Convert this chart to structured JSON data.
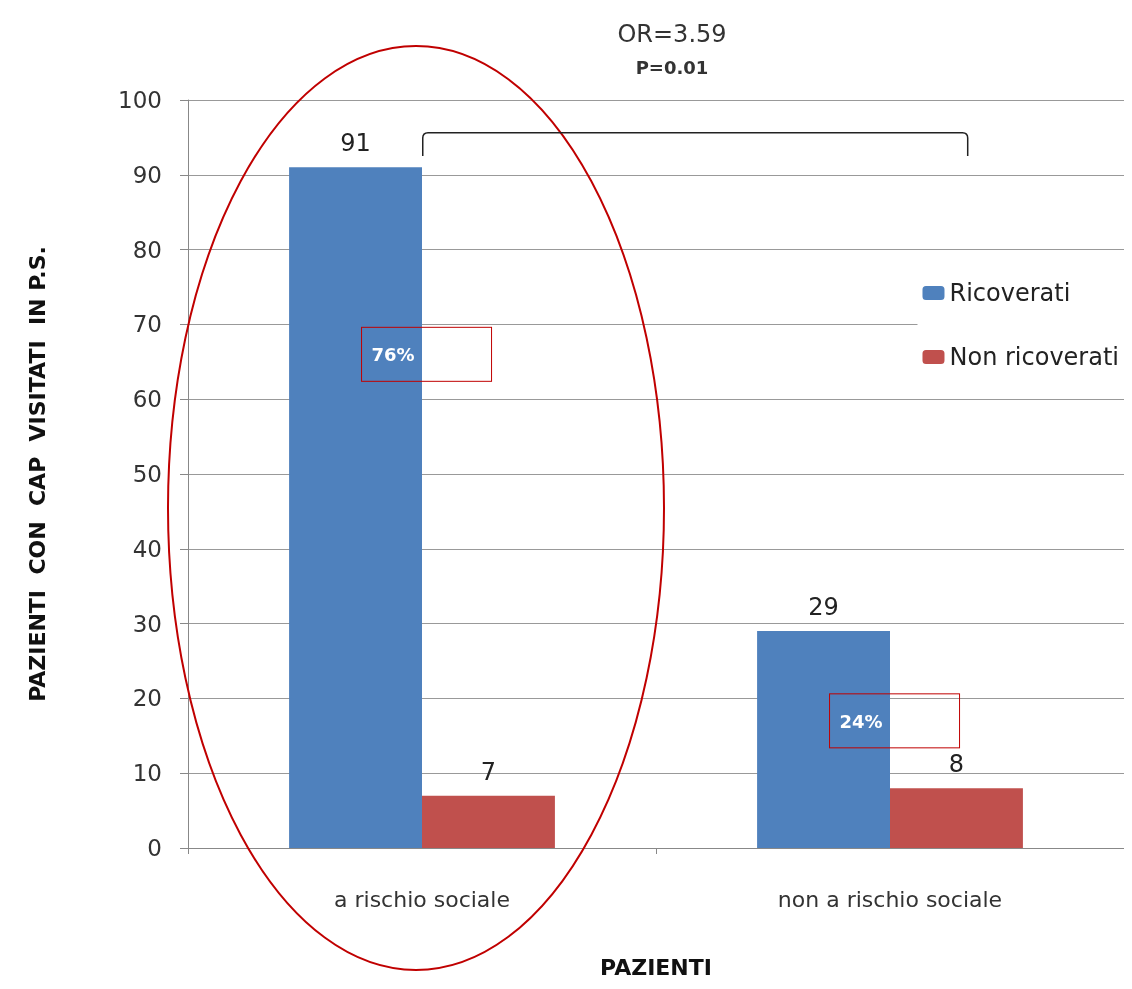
{
  "chart_data": {
    "type": "bar",
    "categories": [
      "a rischio sociale",
      "non a rischio sociale"
    ],
    "series": [
      {
        "name": "Ricoverati",
        "color": "#4f81bd",
        "values": [
          91,
          29
        ]
      },
      {
        "name": "Non ricoverati",
        "color": "#c0504d",
        "values": [
          7,
          8
        ]
      }
    ],
    "ylabel": "PAZIENTI  CON  CAP  VISITATI  IN P.S.",
    "xlabel": "PAZIENTI",
    "ylim": [
      0,
      100
    ],
    "yticks": [
      0,
      10,
      20,
      30,
      40,
      50,
      60,
      70,
      80,
      90,
      100
    ],
    "grid": "y",
    "legend": "right",
    "data_labels": true,
    "annotations": [
      "OR=3.59",
      "P=0.01",
      {
        "text": "76%",
        "x": "a rischio sociale",
        "y": 66
      },
      {
        "text": "24%",
        "x": "non a rischio sociale",
        "y": 17
      }
    ]
  }
}
